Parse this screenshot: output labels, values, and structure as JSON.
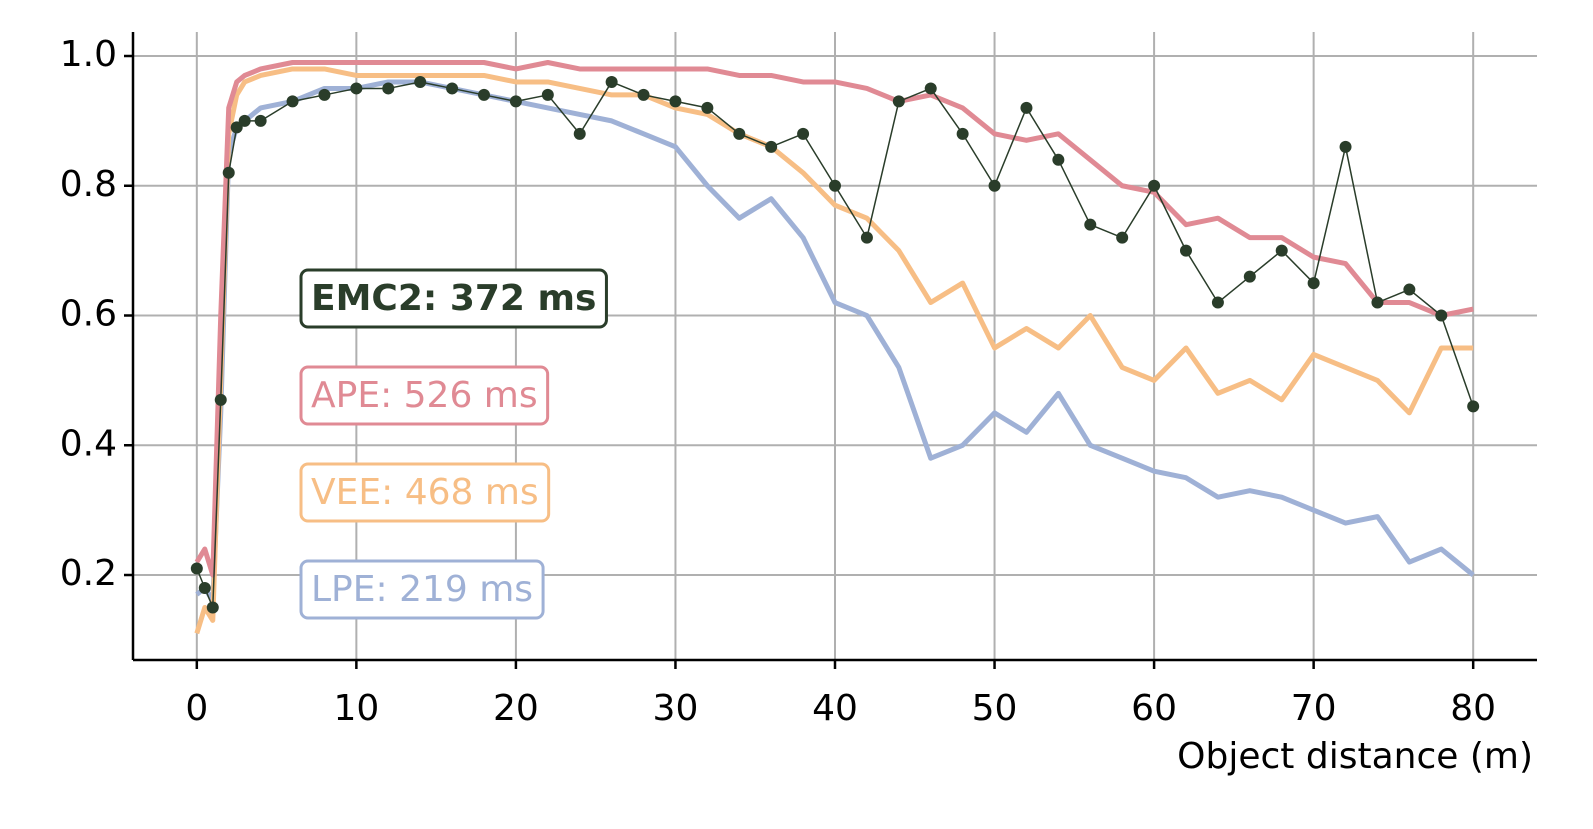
{
  "chart_data": {
    "type": "line",
    "x_label": "Object distance (m)",
    "x": [
      0,
      0.5,
      1,
      1.5,
      2,
      2.5,
      3,
      4,
      6,
      8,
      10,
      12,
      14,
      16,
      18,
      20,
      22,
      24,
      26,
      28,
      30,
      32,
      34,
      36,
      38,
      40,
      42,
      44,
      46,
      48,
      50,
      52,
      54,
      56,
      58,
      60,
      62,
      64,
      66,
      68,
      70,
      72,
      74,
      76,
      78,
      80
    ],
    "series": [
      {
        "name": "EMC2: 372 ms",
        "color": "#2a3d2a",
        "markers": true,
        "values": [
          0.21,
          0.18,
          0.15,
          0.47,
          0.82,
          0.89,
          0.9,
          0.9,
          0.93,
          0.94,
          0.95,
          0.95,
          0.96,
          0.95,
          0.94,
          0.93,
          0.94,
          0.88,
          0.96,
          0.94,
          0.93,
          0.92,
          0.88,
          0.86,
          0.88,
          0.8,
          0.72,
          0.93,
          0.95,
          0.88,
          0.8,
          0.92,
          0.84,
          0.74,
          0.72,
          0.8,
          0.7,
          0.62,
          0.66,
          0.7,
          0.65,
          0.86,
          0.62,
          0.64,
          0.6,
          0.46
        ]
      },
      {
        "name": "APE: 526 ms",
        "color": "#e08a94",
        "values": [
          0.22,
          0.24,
          0.2,
          0.6,
          0.92,
          0.96,
          0.97,
          0.98,
          0.99,
          0.99,
          0.99,
          0.99,
          0.99,
          0.99,
          0.99,
          0.98,
          0.99,
          0.98,
          0.98,
          0.98,
          0.98,
          0.98,
          0.97,
          0.97,
          0.96,
          0.96,
          0.95,
          0.93,
          0.94,
          0.92,
          0.88,
          0.87,
          0.88,
          0.84,
          0.8,
          0.79,
          0.74,
          0.75,
          0.72,
          0.72,
          0.69,
          0.68,
          0.62,
          0.62,
          0.6,
          0.61
        ]
      },
      {
        "name": "VEE: 468 ms",
        "color": "#f7be85",
        "values": [
          0.11,
          0.15,
          0.13,
          0.5,
          0.88,
          0.94,
          0.96,
          0.97,
          0.98,
          0.98,
          0.97,
          0.97,
          0.97,
          0.97,
          0.97,
          0.96,
          0.96,
          0.95,
          0.94,
          0.94,
          0.92,
          0.91,
          0.88,
          0.86,
          0.82,
          0.77,
          0.75,
          0.7,
          0.62,
          0.65,
          0.55,
          0.58,
          0.55,
          0.6,
          0.52,
          0.5,
          0.55,
          0.48,
          0.5,
          0.47,
          0.54,
          0.52,
          0.5,
          0.45,
          0.55,
          0.55
        ]
      },
      {
        "name": "LPE: 219 ms",
        "color": "#9fb1d6",
        "values": [
          0.17,
          0.18,
          0.16,
          0.45,
          0.85,
          0.89,
          0.9,
          0.92,
          0.93,
          0.95,
          0.95,
          0.96,
          0.96,
          0.95,
          0.94,
          0.93,
          0.92,
          0.91,
          0.9,
          0.88,
          0.86,
          0.8,
          0.75,
          0.78,
          0.72,
          0.62,
          0.6,
          0.52,
          0.38,
          0.4,
          0.45,
          0.42,
          0.48,
          0.4,
          0.38,
          0.36,
          0.35,
          0.32,
          0.33,
          0.32,
          0.3,
          0.28,
          0.29,
          0.22,
          0.24,
          0.2
        ]
      }
    ],
    "xlim": [
      -4,
      84
    ],
    "ylim": [
      0.069,
      1.037
    ],
    "xticks": [
      0,
      10,
      20,
      30,
      40,
      50,
      60,
      70,
      80
    ],
    "yticks": [
      0.2,
      0.4,
      0.6,
      0.8,
      {
        "value": 1,
        "label": "1.0"
      }
    ],
    "grid": true
  }
}
